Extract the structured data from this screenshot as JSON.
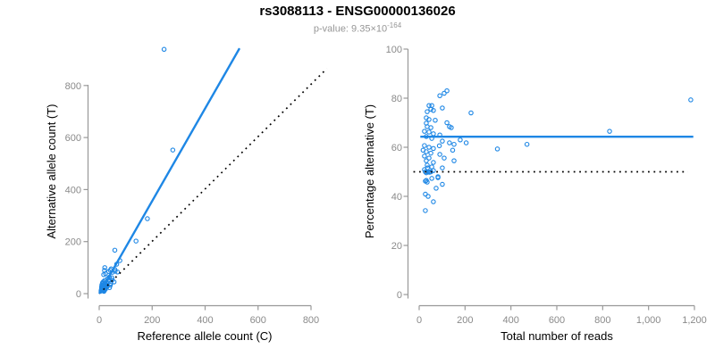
{
  "header": {
    "title": "rs3088113 - ENSG00000136026",
    "subtitle_prefix": "p-value: 9.35×10",
    "subtitle_exponent": "-164"
  },
  "colors": {
    "accent_blue": "#1E87E5",
    "axis_gray": "#999999",
    "tick_label_gray": "#8A8A8A",
    "label_black": "#000000",
    "reference_black": "#000000",
    "subtitle_gray": "#969696"
  },
  "chart_data": [
    {
      "type": "scatter",
      "name": "allele-counts-scatter",
      "xlabel": "Reference allele count (C)",
      "ylabel": "Alternative allele count (T)",
      "xlim": [
        0,
        860
      ],
      "ylim": [
        0,
        960
      ],
      "grid": false,
      "x_ticks": [
        {
          "v": 0,
          "label": "0"
        },
        {
          "v": 200,
          "label": "200"
        },
        {
          "v": 400,
          "label": "400"
        },
        {
          "v": 600,
          "label": "600"
        },
        {
          "v": 800,
          "label": "800"
        }
      ],
      "y_ticks": [
        {
          "v": 0,
          "label": "0"
        },
        {
          "v": 200,
          "label": "200"
        },
        {
          "v": 400,
          "label": "400"
        },
        {
          "v": 600,
          "label": "600"
        },
        {
          "v": 800,
          "label": "800"
        }
      ],
      "fit_line": {
        "x1": 0,
        "y1": 0,
        "x2": 530,
        "y2": 943,
        "style": "solid"
      },
      "reference_line": {
        "x1": 0,
        "y1": 0,
        "x2": 860,
        "y2": 865,
        "style": "dotted"
      },
      "points": [
        [
          20,
          89
        ],
        [
          21,
          100
        ],
        [
          17,
          73
        ],
        [
          24,
          77
        ],
        [
          10,
          33
        ],
        [
          13,
          42
        ],
        [
          12,
          39
        ],
        [
          9,
          26
        ],
        [
          16,
          46
        ],
        [
          59,
          167
        ],
        [
          9,
          22
        ],
        [
          12,
          31
        ],
        [
          20,
          50
        ],
        [
          36,
          85
        ],
        [
          42,
          90
        ],
        [
          45,
          95
        ],
        [
          9,
          22
        ],
        [
          11,
          24
        ],
        [
          16,
          35
        ],
        [
          8,
          15
        ],
        [
          15,
          28
        ],
        [
          21,
          41
        ],
        [
          32,
          58
        ],
        [
          11,
          20
        ],
        [
          20,
          35
        ],
        [
          38,
          63
        ],
        [
          50,
          82
        ],
        [
          59,
          93
        ],
        [
          78,
          127
        ],
        [
          139,
          202
        ],
        [
          182,
          288
        ],
        [
          278,
          552
        ],
        [
          245,
          939
        ],
        [
          9,
          14
        ],
        [
          17,
          26
        ],
        [
          25,
          37
        ],
        [
          35,
          53
        ],
        [
          66,
          113
        ],
        [
          60,
          86
        ],
        [
          7,
          10
        ],
        [
          13,
          18
        ],
        [
          22,
          29
        ],
        [
          39,
          51
        ],
        [
          10,
          13
        ],
        [
          19,
          24
        ],
        [
          48,
          61
        ],
        [
          14,
          17
        ],
        [
          29,
          33
        ],
        [
          69,
          83
        ],
        [
          17,
          18
        ],
        [
          26,
          29
        ],
        [
          49,
          52
        ],
        [
          11,
          12
        ],
        [
          14,
          13
        ],
        [
          20,
          19
        ],
        [
          26,
          25
        ],
        [
          31,
          31
        ],
        [
          17,
          19
        ],
        [
          16,
          15
        ],
        [
          23,
          22
        ],
        [
          43,
          39
        ],
        [
          17,
          14
        ],
        [
          15,
          12
        ],
        [
          29,
          26
        ],
        [
          43,
          39
        ],
        [
          56,
          45
        ],
        [
          42,
          32
        ],
        [
          16,
          11
        ],
        [
          23,
          16
        ],
        [
          39,
          23
        ],
        [
          18,
          9
        ],
        [
          19,
          16
        ]
      ]
    },
    {
      "type": "scatter",
      "name": "percentage-vs-coverage-scatter",
      "xlabel": "Total number of reads",
      "ylabel": "Percentage alternative (T)",
      "xlim": [
        -30,
        1200
      ],
      "ylim": [
        0,
        100
      ],
      "grid": false,
      "x_ticks": [
        {
          "v": 0,
          "label": "0"
        },
        {
          "v": 200,
          "label": "200"
        },
        {
          "v": 400,
          "label": "400"
        },
        {
          "v": 600,
          "label": "600"
        },
        {
          "v": 800,
          "label": "800"
        },
        {
          "v": 1000,
          "label": "1,000"
        },
        {
          "v": 1200,
          "label": "1,200"
        }
      ],
      "y_ticks": [
        {
          "v": 0,
          "label": "0"
        },
        {
          "v": 20,
          "label": "20"
        },
        {
          "v": 40,
          "label": "40"
        },
        {
          "v": 60,
          "label": "60"
        },
        {
          "v": 80,
          "label": "80"
        },
        {
          "v": 100,
          "label": "100"
        }
      ],
      "fit_line": {
        "x1": 5,
        "y1": 64.3,
        "x2": 1195,
        "y2": 64.3,
        "style": "solid"
      },
      "reference_line": {
        "x1": -25,
        "y1": 50,
        "x2": 1172,
        "y2": 50,
        "style": "dotted"
      },
      "points": [
        [
          109,
          82
        ],
        [
          121,
          83
        ],
        [
          90,
          81
        ],
        [
          101,
          76
        ],
        [
          43,
          77
        ],
        [
          55,
          77
        ],
        [
          51,
          75.5
        ],
        [
          35,
          74.5
        ],
        [
          62,
          75
        ],
        [
          226,
          74
        ],
        [
          31,
          72
        ],
        [
          43,
          71.3
        ],
        [
          70,
          71
        ],
        [
          121,
          70
        ],
        [
          132,
          68.4
        ],
        [
          140,
          68
        ],
        [
          31,
          69.8
        ],
        [
          35,
          68.4
        ],
        [
          51,
          68
        ],
        [
          23,
          66.5
        ],
        [
          43,
          66.2
        ],
        [
          62,
          65.5
        ],
        [
          90,
          65
        ],
        [
          31,
          64.4
        ],
        [
          55,
          63.6
        ],
        [
          101,
          62.5
        ],
        [
          132,
          61.8
        ],
        [
          152,
          61.2
        ],
        [
          205,
          61.8
        ],
        [
          341,
          59.3
        ],
        [
          470,
          61.2
        ],
        [
          830,
          66.5
        ],
        [
          1184,
          79.3
        ],
        [
          23,
          60.7
        ],
        [
          43,
          60
        ],
        [
          62,
          59.5
        ],
        [
          88,
          60.6
        ],
        [
          179,
          63
        ],
        [
          146,
          58.8
        ],
        [
          17,
          58.8
        ],
        [
          31,
          58.2
        ],
        [
          51,
          57.6
        ],
        [
          90,
          57.1
        ],
        [
          23,
          56.4
        ],
        [
          43,
          55.6
        ],
        [
          109,
          55.6
        ],
        [
          31,
          54.5
        ],
        [
          62,
          53.8
        ],
        [
          152,
          54.5
        ],
        [
          35,
          52.7
        ],
        [
          55,
          52
        ],
        [
          101,
          51.6
        ],
        [
          23,
          50.9
        ],
        [
          27,
          50
        ],
        [
          39,
          50
        ],
        [
          51,
          50
        ],
        [
          62,
          50.5
        ],
        [
          36,
          51.6
        ],
        [
          31,
          49.6
        ],
        [
          45,
          49.8
        ],
        [
          82,
          48
        ],
        [
          31,
          46.5
        ],
        [
          27,
          46.2
        ],
        [
          55,
          47.3
        ],
        [
          82,
          47.6
        ],
        [
          101,
          44.9
        ],
        [
          74,
          43.3
        ],
        [
          27,
          40.9
        ],
        [
          39,
          40
        ],
        [
          62,
          37.8
        ],
        [
          27,
          34.2
        ],
        [
          35,
          45.8
        ]
      ]
    }
  ]
}
